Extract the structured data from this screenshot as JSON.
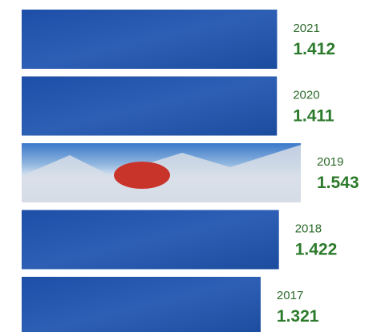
{
  "chart_data": {
    "type": "bar",
    "orientation": "horizontal",
    "categories": [
      "2021",
      "2020",
      "2019",
      "2018",
      "2017"
    ],
    "values": [
      1412,
      1411,
      1543,
      1422,
      1321
    ],
    "value_labels": [
      "1.412",
      "1.411",
      "1.543",
      "1.422",
      "1.321"
    ],
    "color": "#2d5fb5"
  }
}
